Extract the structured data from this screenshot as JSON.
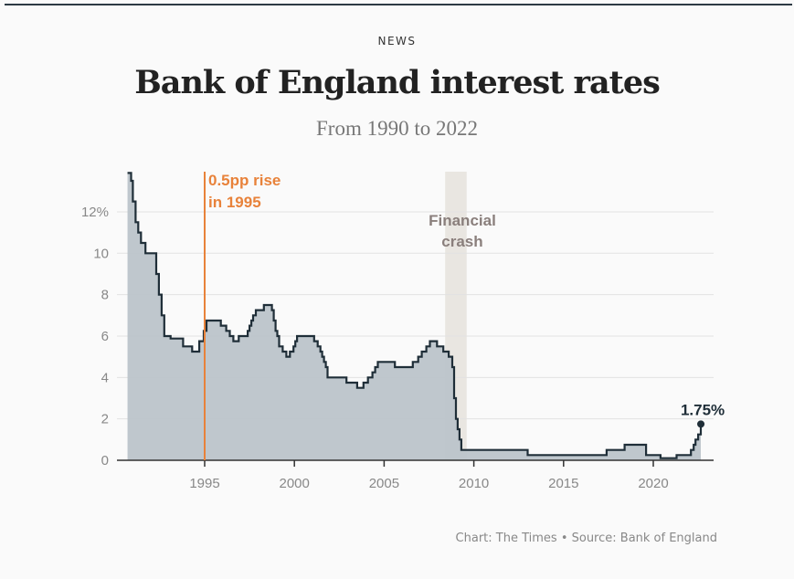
{
  "header": {
    "kicker": "NEWS",
    "title": "Bank of England interest rates",
    "subtitle": "From 1990 to 2022"
  },
  "footer": {
    "source": "Chart: The Times • Source: Bank of England"
  },
  "colors": {
    "area": "#bcc4ca",
    "line": "#1f2e38",
    "annotation": "#e8823a",
    "crash_band": "#e9e6e1",
    "crash_text": "#8a7f7c",
    "grid": "#e2e2e2"
  },
  "chart_data": {
    "type": "area",
    "title": "Bank of England interest rates",
    "subtitle": "From 1990 to 2022",
    "xlim": [
      1990,
      2023
    ],
    "ylim": [
      0,
      14
    ],
    "x_ticks": [
      1995,
      2000,
      2005,
      2010,
      2015,
      2020
    ],
    "x_tick_labels": [
      "1995",
      "2000",
      "2005",
      "2010",
      "2015",
      "2020"
    ],
    "y_ticks": [
      0,
      2,
      4,
      6,
      8,
      10,
      12
    ],
    "y_tick_labels": [
      "0",
      "2",
      "4",
      "6",
      "8",
      "10",
      "12%"
    ],
    "grid": "horizontal",
    "step": true,
    "points": [
      [
        1990.7,
        13.88
      ],
      [
        1990.9,
        13.5
      ],
      [
        1991.0,
        12.5
      ],
      [
        1991.15,
        11.5
      ],
      [
        1991.3,
        11
      ],
      [
        1991.45,
        10.5
      ],
      [
        1991.7,
        10
      ],
      [
        1992.3,
        9
      ],
      [
        1992.45,
        8
      ],
      [
        1992.6,
        7
      ],
      [
        1992.75,
        6
      ],
      [
        1993.1,
        5.88
      ],
      [
        1993.8,
        5.5
      ],
      [
        1994.3,
        5.25
      ],
      [
        1994.7,
        5.75
      ],
      [
        1994.95,
        6.25
      ],
      [
        1995.1,
        6.75
      ],
      [
        1995.9,
        6.5
      ],
      [
        1996.2,
        6.25
      ],
      [
        1996.4,
        6
      ],
      [
        1996.6,
        5.75
      ],
      [
        1996.9,
        6
      ],
      [
        1997.4,
        6.25
      ],
      [
        1997.5,
        6.5
      ],
      [
        1997.6,
        6.75
      ],
      [
        1997.7,
        7
      ],
      [
        1997.85,
        7.25
      ],
      [
        1998.3,
        7.5
      ],
      [
        1998.75,
        7.25
      ],
      [
        1998.85,
        6.75
      ],
      [
        1998.95,
        6.25
      ],
      [
        1999.05,
        6
      ],
      [
        1999.15,
        5.5
      ],
      [
        1999.35,
        5.25
      ],
      [
        1999.55,
        5
      ],
      [
        1999.75,
        5.25
      ],
      [
        1999.95,
        5.5
      ],
      [
        2000.05,
        5.75
      ],
      [
        2000.15,
        6
      ],
      [
        2001.1,
        5.75
      ],
      [
        2001.3,
        5.5
      ],
      [
        2001.45,
        5.25
      ],
      [
        2001.55,
        5
      ],
      [
        2001.65,
        4.75
      ],
      [
        2001.75,
        4.5
      ],
      [
        2001.85,
        4
      ],
      [
        2002.9,
        3.75
      ],
      [
        2003.5,
        3.5
      ],
      [
        2003.85,
        3.75
      ],
      [
        2004.1,
        4
      ],
      [
        2004.35,
        4.25
      ],
      [
        2004.5,
        4.5
      ],
      [
        2004.65,
        4.75
      ],
      [
        2005.6,
        4.5
      ],
      [
        2006.6,
        4.75
      ],
      [
        2006.9,
        5
      ],
      [
        2007.1,
        5.25
      ],
      [
        2007.35,
        5.5
      ],
      [
        2007.55,
        5.75
      ],
      [
        2007.95,
        5.5
      ],
      [
        2008.3,
        5.25
      ],
      [
        2008.6,
        5
      ],
      [
        2008.8,
        4.5
      ],
      [
        2008.9,
        3
      ],
      [
        2009.0,
        2
      ],
      [
        2009.1,
        1.5
      ],
      [
        2009.2,
        1
      ],
      [
        2009.3,
        0.5
      ],
      [
        2013.0,
        0.25
      ],
      [
        2017.4,
        0.5
      ],
      [
        2018.4,
        0.75
      ],
      [
        2019.6,
        0.25
      ],
      [
        2020.4,
        0.1
      ],
      [
        2021.3,
        0.25
      ],
      [
        2022.1,
        0.5
      ],
      [
        2022.25,
        0.75
      ],
      [
        2022.35,
        1
      ],
      [
        2022.5,
        1.25
      ],
      [
        2022.65,
        1.75
      ]
    ],
    "end_label": "1.75%",
    "annotations": [
      {
        "type": "vline",
        "x": 1995,
        "label_lines": [
          "0.5pp rise",
          "in 1995"
        ]
      },
      {
        "type": "band",
        "x_range": [
          2008.4,
          2009.6
        ],
        "label_lines": [
          "Financial",
          "crash"
        ]
      }
    ]
  }
}
